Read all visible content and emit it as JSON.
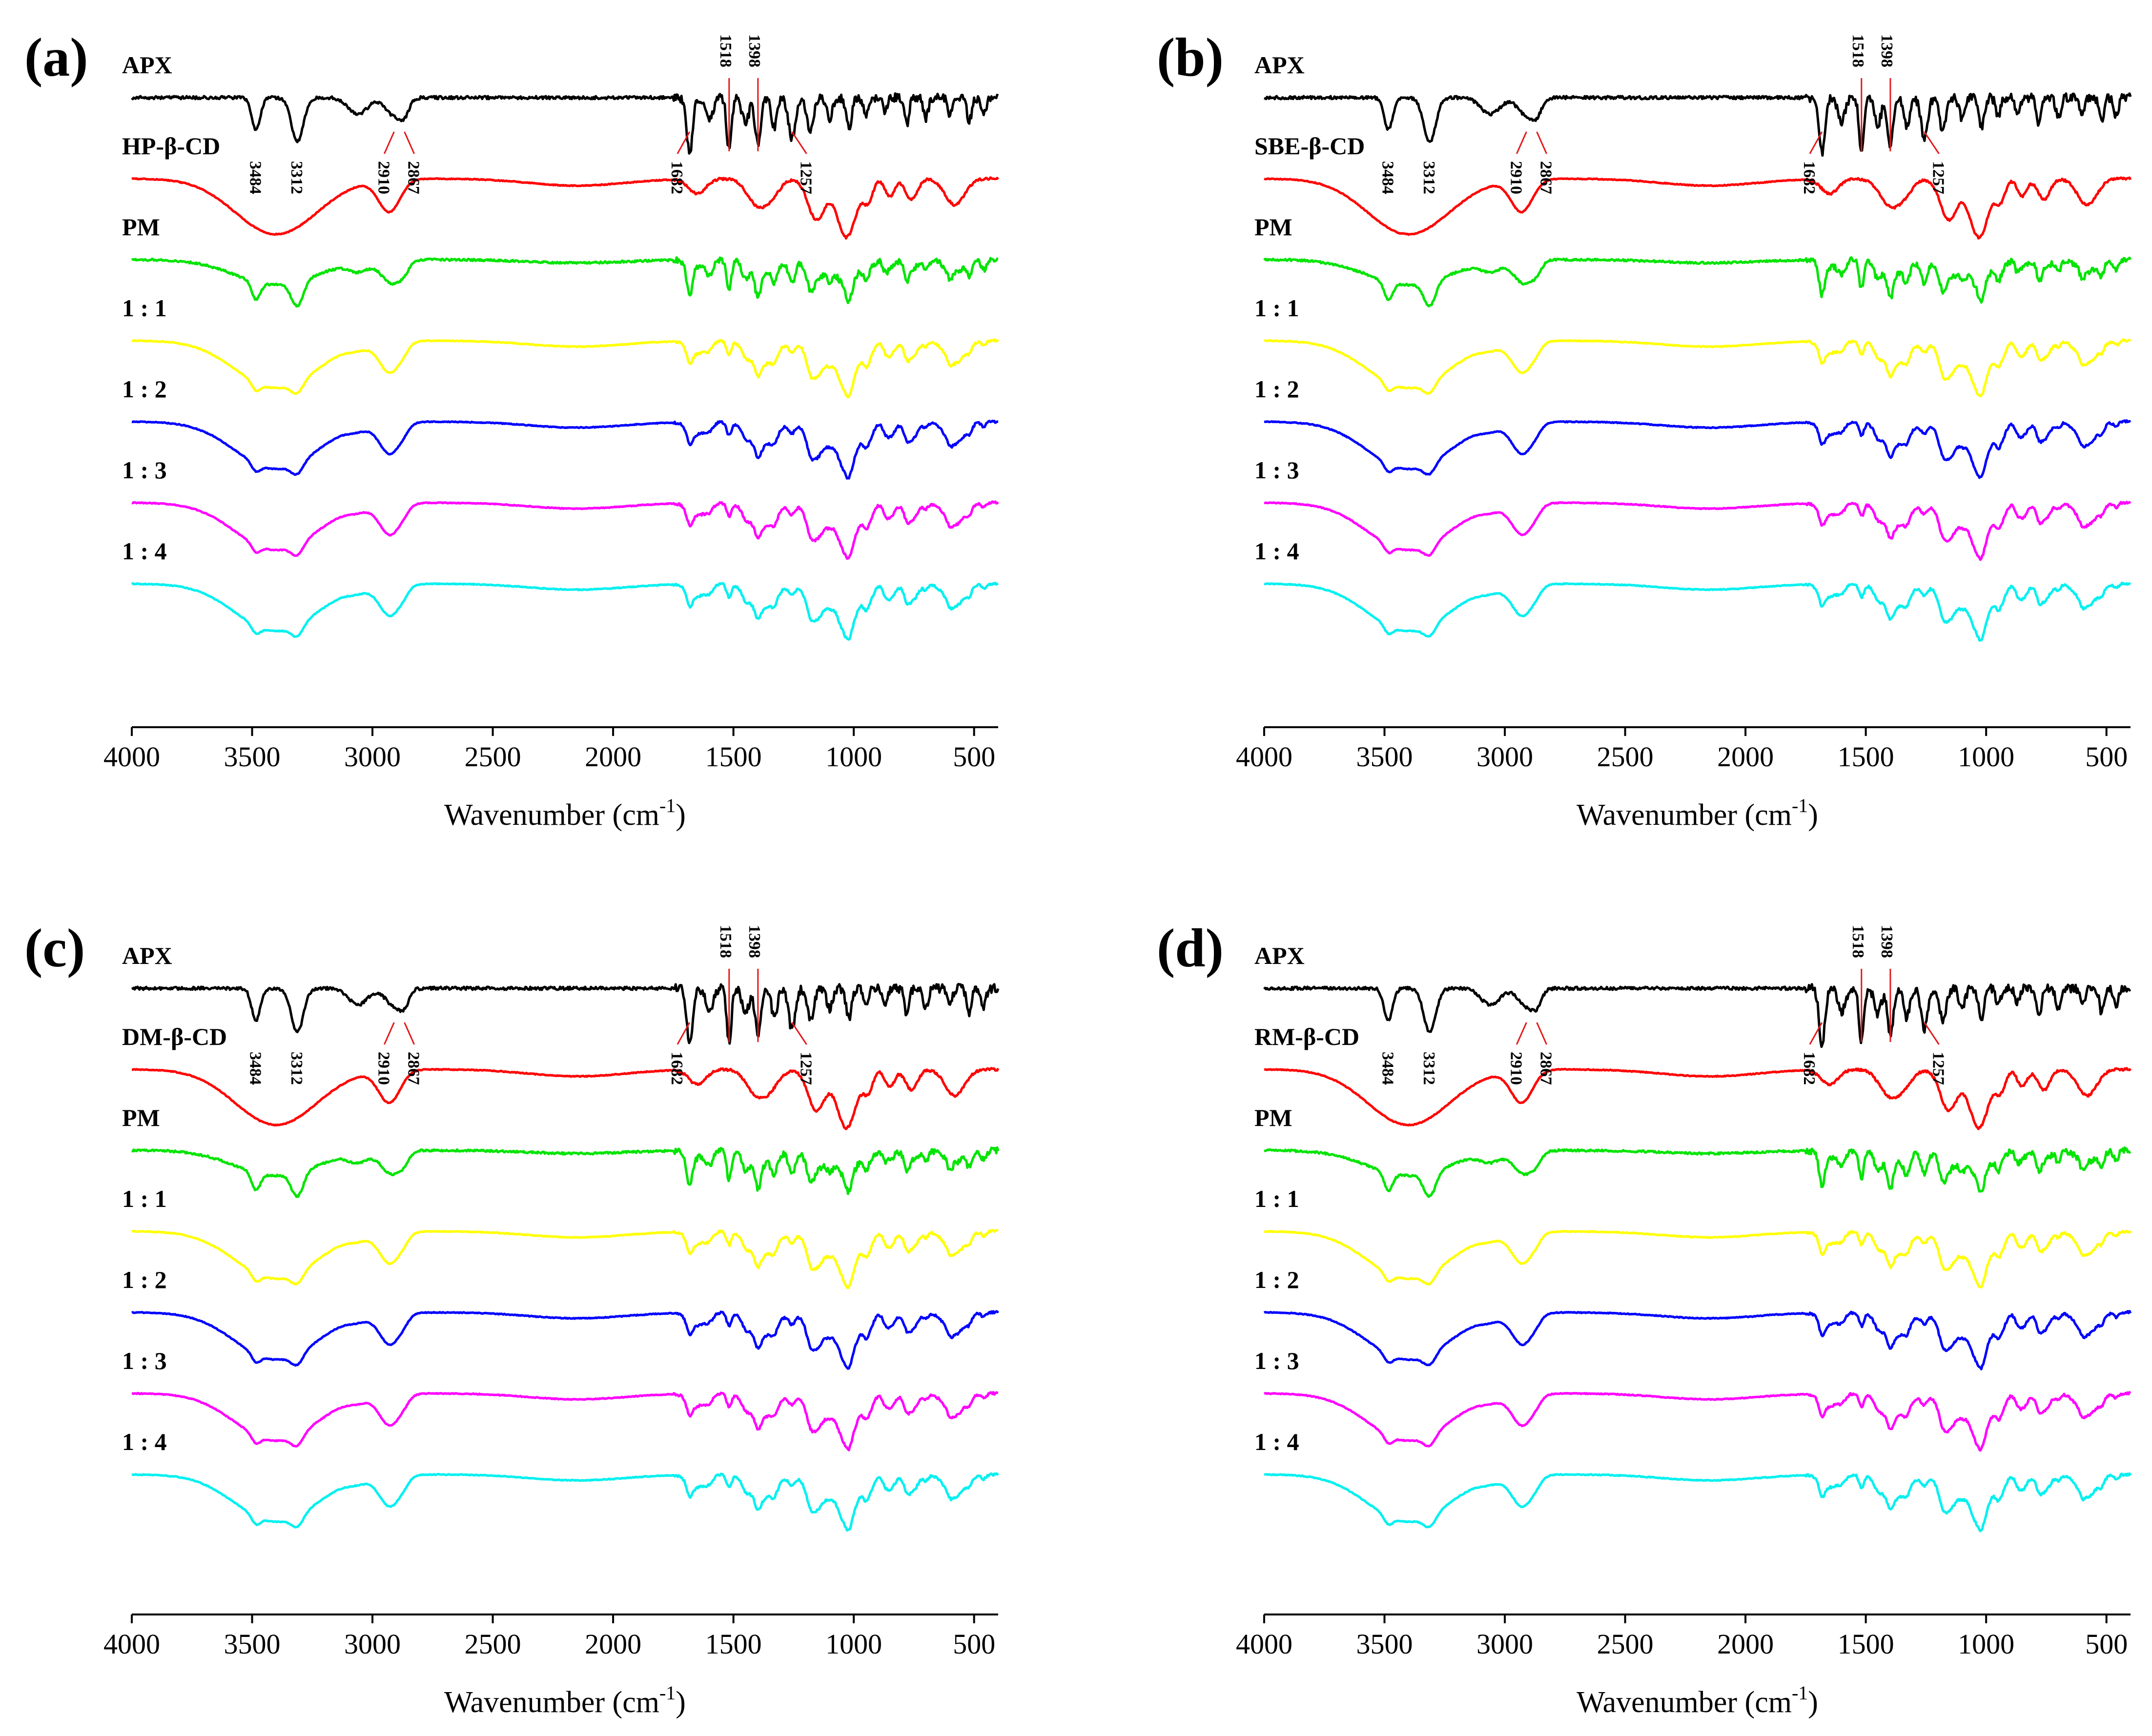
{
  "figure": {
    "colors": {
      "APX": "#000000",
      "CD": "#ff0000",
      "PM": "#00e400",
      "1 : 1": "#ffff00",
      "1 : 2": "#0000ff",
      "1 : 3": "#ff00ff",
      "1 : 4": "#00f0f0",
      "leader": "#e31a1c"
    }
  },
  "chart_data": [
    {
      "panel": "(a)",
      "type": "line",
      "title": "",
      "xlabel": "Wavenumber (cm-1)",
      "xlabel_main": "Wavenumber (cm",
      "xlabel_sup": "-1",
      "xlabel_end": ")",
      "ylabel": "",
      "xlim": [
        4000,
        400
      ],
      "xticks": [
        4000,
        3500,
        3000,
        2500,
        2000,
        1500,
        1000,
        500
      ],
      "xtick_labels": [
        "4000",
        "3500",
        "3000",
        "2500",
        "2000",
        "1500",
        "1000",
        "500"
      ],
      "series": [
        {
          "name": "APX",
          "label": "APX",
          "color": "#000000",
          "offset": 0,
          "profile": "APX"
        },
        {
          "name": "HP-β-CD",
          "label": "HP-β-CD",
          "color": "#ff0000",
          "offset": 1,
          "profile": "CD"
        },
        {
          "name": "PM",
          "label": "PM",
          "color": "#00e400",
          "offset": 2,
          "profile": "PM"
        },
        {
          "name": "1 : 1",
          "label": "1 : 1",
          "color": "#ffff00",
          "offset": 3,
          "profile": "COMPLEX"
        },
        {
          "name": "1 : 2",
          "label": "1 : 2",
          "color": "#0000ff",
          "offset": 4,
          "profile": "COMPLEX"
        },
        {
          "name": "1 : 3",
          "label": "1 : 3",
          "color": "#ff00ff",
          "offset": 5,
          "profile": "COMPLEX"
        },
        {
          "name": "1 : 4",
          "label": "1 : 4",
          "color": "#00f0f0",
          "offset": 6,
          "profile": "COMPLEX"
        }
      ],
      "annotations": [
        "3484",
        "3312",
        "2910",
        "2867",
        "1682",
        "1518",
        "1398",
        "1257"
      ],
      "annotation_wavenumbers": [
        3484,
        3312,
        2910,
        2867,
        1682,
        1518,
        1398,
        1257
      ]
    },
    {
      "panel": "(b)",
      "type": "line",
      "title": "",
      "xlabel": "Wavenumber (cm-1)",
      "xlabel_main": "Wavenumber (cm",
      "xlabel_sup": "-1",
      "xlabel_end": ")",
      "ylabel": "",
      "xlim": [
        4000,
        400
      ],
      "xticks": [
        4000,
        3500,
        3000,
        2500,
        2000,
        1500,
        1000,
        500
      ],
      "xtick_labels": [
        "4000",
        "3500",
        "3000",
        "2500",
        "2000",
        "1500",
        "1000",
        "500"
      ],
      "series": [
        {
          "name": "APX",
          "label": "APX",
          "color": "#000000",
          "offset": 0,
          "profile": "APX"
        },
        {
          "name": "SBE-β-CD",
          "label": "SBE-β-CD",
          "color": "#ff0000",
          "offset": 1,
          "profile": "CD"
        },
        {
          "name": "PM",
          "label": "PM",
          "color": "#00e400",
          "offset": 2,
          "profile": "PM"
        },
        {
          "name": "1 : 1",
          "label": "1 : 1",
          "color": "#ffff00",
          "offset": 3,
          "profile": "COMPLEX"
        },
        {
          "name": "1 : 2",
          "label": "1 : 2",
          "color": "#0000ff",
          "offset": 4,
          "profile": "COMPLEX"
        },
        {
          "name": "1 : 3",
          "label": "1 : 3",
          "color": "#ff00ff",
          "offset": 5,
          "profile": "COMPLEX"
        },
        {
          "name": "1 : 4",
          "label": "1 : 4",
          "color": "#00f0f0",
          "offset": 6,
          "profile": "COMPLEX"
        }
      ],
      "annotations": [
        "3484",
        "3312",
        "2910",
        "2867",
        "1682",
        "1518",
        "1398",
        "1257"
      ],
      "annotation_wavenumbers": [
        3484,
        3312,
        2910,
        2867,
        1682,
        1518,
        1398,
        1257
      ]
    },
    {
      "panel": "(c)",
      "type": "line",
      "title": "",
      "xlabel": "Wavenumber (cm-1)",
      "xlabel_main": "Wavenumber (cm",
      "xlabel_sup": "-1",
      "xlabel_end": ")",
      "ylabel": "",
      "xlim": [
        4000,
        400
      ],
      "xticks": [
        4000,
        3500,
        3000,
        2500,
        2000,
        1500,
        1000,
        500
      ],
      "xtick_labels": [
        "4000",
        "3500",
        "3000",
        "2500",
        "2000",
        "1500",
        "1000",
        "500"
      ],
      "series": [
        {
          "name": "APX",
          "label": "APX",
          "color": "#000000",
          "offset": 0,
          "profile": "APX"
        },
        {
          "name": "DM-β-CD",
          "label": "DM-β-CD",
          "color": "#ff0000",
          "offset": 1,
          "profile": "CD"
        },
        {
          "name": "PM",
          "label": "PM",
          "color": "#00e400",
          "offset": 2,
          "profile": "PM"
        },
        {
          "name": "1 : 1",
          "label": "1 : 1",
          "color": "#ffff00",
          "offset": 3,
          "profile": "COMPLEX"
        },
        {
          "name": "1 : 2",
          "label": "1 : 2",
          "color": "#0000ff",
          "offset": 4,
          "profile": "COMPLEX"
        },
        {
          "name": "1 : 3",
          "label": "1 : 3",
          "color": "#ff00ff",
          "offset": 5,
          "profile": "COMPLEX"
        },
        {
          "name": "1 : 4",
          "label": "1 : 4",
          "color": "#00f0f0",
          "offset": 6,
          "profile": "COMPLEX"
        }
      ],
      "annotations": [
        "3484",
        "3312",
        "2910",
        "2867",
        "1682",
        "1518",
        "1398",
        "1257"
      ],
      "annotation_wavenumbers": [
        3484,
        3312,
        2910,
        2867,
        1682,
        1518,
        1398,
        1257
      ]
    },
    {
      "panel": "(d)",
      "type": "line",
      "title": "",
      "xlabel": "Wavenumber (cm-1)",
      "xlabel_main": "Wavenumber (cm",
      "xlabel_sup": "-1",
      "xlabel_end": ")",
      "ylabel": "",
      "xlim": [
        4000,
        400
      ],
      "xticks": [
        4000,
        3500,
        3000,
        2500,
        2000,
        1500,
        1000,
        500
      ],
      "xtick_labels": [
        "4000",
        "3500",
        "3000",
        "2500",
        "2000",
        "1500",
        "1000",
        "500"
      ],
      "series": [
        {
          "name": "APX",
          "label": "APX",
          "color": "#000000",
          "offset": 0,
          "profile": "APX"
        },
        {
          "name": "RM-β-CD",
          "label": "RM-β-CD",
          "color": "#ff0000",
          "offset": 1,
          "profile": "CD"
        },
        {
          "name": "PM",
          "label": "PM",
          "color": "#00e400",
          "offset": 2,
          "profile": "PM"
        },
        {
          "name": "1 : 1",
          "label": "1 : 1",
          "color": "#ffff00",
          "offset": 3,
          "profile": "COMPLEX"
        },
        {
          "name": "1 : 2",
          "label": "1 : 2",
          "color": "#0000ff",
          "offset": 4,
          "profile": "COMPLEX"
        },
        {
          "name": "1 : 3",
          "label": "1 : 3",
          "color": "#ff00ff",
          "offset": 5,
          "profile": "COMPLEX"
        },
        {
          "name": "1 : 4",
          "label": "1 : 4",
          "color": "#00f0f0",
          "offset": 6,
          "profile": "COMPLEX"
        }
      ],
      "annotations": [
        "3484",
        "3312",
        "2910",
        "2867",
        "1682",
        "1518",
        "1398",
        "1257"
      ],
      "annotation_wavenumbers": [
        3484,
        3312,
        2910,
        2867,
        1682,
        1518,
        1398,
        1257
      ]
    }
  ]
}
